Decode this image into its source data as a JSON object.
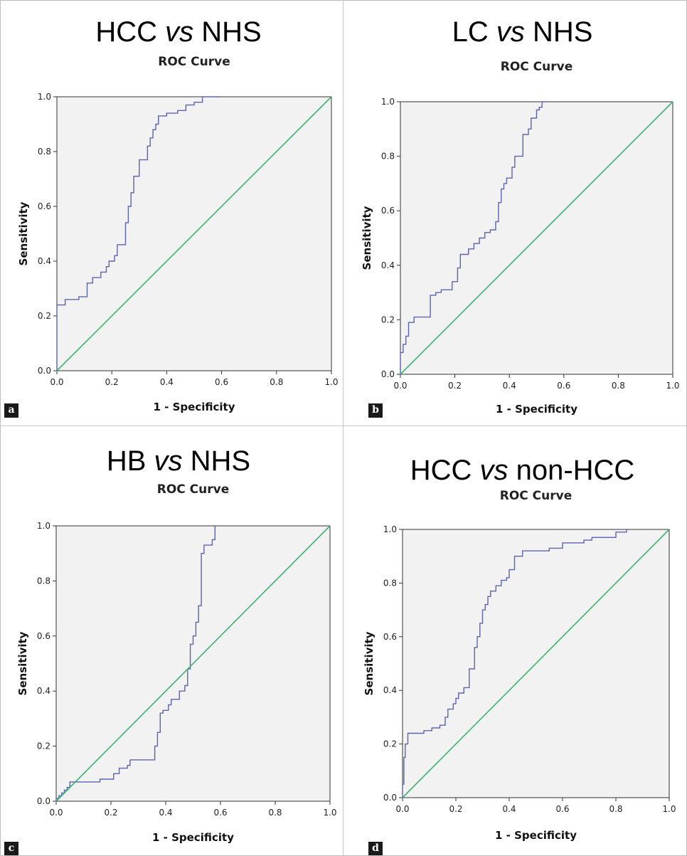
{
  "panels": [
    {
      "tag": "a"
    },
    {
      "tag": "b"
    },
    {
      "tag": "c"
    },
    {
      "tag": "d"
    }
  ],
  "colors": {
    "roc_curve": "#5b64ad",
    "reference_line": "#3cb371",
    "plot_background": "#f2f2f2",
    "axis": "#333333"
  },
  "chart_data": [
    {
      "type": "line",
      "title": "HCC vs NHS",
      "title_parts": [
        "HCC ",
        "vs",
        " NHS"
      ],
      "subtitle": "ROC Curve",
      "xlabel": "1 - Specificity",
      "ylabel": "Sensitivity",
      "xlim": [
        0,
        1
      ],
      "ylim": [
        0,
        1
      ],
      "xticks": [
        "0.0",
        "0.2",
        "0.4",
        "0.6",
        "0.8",
        "1.0"
      ],
      "yticks": [
        "0.0",
        "0.2",
        "0.4",
        "0.6",
        "0.8",
        "1.0"
      ],
      "grid": false,
      "series": [
        {
          "role": "roc",
          "x": [
            0,
            0,
            0.03,
            0.03,
            0.08,
            0.08,
            0.11,
            0.11,
            0.13,
            0.13,
            0.16,
            0.16,
            0.18,
            0.18,
            0.19,
            0.19,
            0.21,
            0.21,
            0.22,
            0.22,
            0.25,
            0.25,
            0.26,
            0.26,
            0.27,
            0.27,
            0.28,
            0.28,
            0.3,
            0.3,
            0.33,
            0.33,
            0.34,
            0.34,
            0.35,
            0.35,
            0.36,
            0.36,
            0.37,
            0.37,
            0.4,
            0.4,
            0.44,
            0.44,
            0.47,
            0.47,
            0.5,
            0.5,
            0.53,
            0.53,
            0.59
          ],
          "y": [
            0,
            0.24,
            0.24,
            0.26,
            0.26,
            0.27,
            0.27,
            0.32,
            0.32,
            0.34,
            0.34,
            0.36,
            0.36,
            0.38,
            0.38,
            0.4,
            0.4,
            0.42,
            0.42,
            0.46,
            0.46,
            0.54,
            0.54,
            0.6,
            0.6,
            0.65,
            0.65,
            0.71,
            0.71,
            0.77,
            0.77,
            0.82,
            0.82,
            0.85,
            0.85,
            0.88,
            0.88,
            0.9,
            0.9,
            0.93,
            0.93,
            0.94,
            0.94,
            0.95,
            0.95,
            0.97,
            0.97,
            0.98,
            0.98,
            1.0,
            1.0
          ]
        },
        {
          "role": "reference",
          "x": [
            0,
            1
          ],
          "y": [
            0,
            1
          ]
        }
      ]
    },
    {
      "type": "line",
      "title": "LC vs NHS",
      "title_parts": [
        "LC ",
        "vs",
        " NHS"
      ],
      "subtitle": "ROC Curve",
      "xlabel": "1 - Specificity",
      "ylabel": "Sensitivity",
      "xlim": [
        0,
        1
      ],
      "ylim": [
        0,
        1
      ],
      "xticks": [
        "0.0",
        "0.2",
        "0.4",
        "0.6",
        "0.8",
        "1.0"
      ],
      "yticks": [
        "0.0",
        "0.2",
        "0.4",
        "0.6",
        "0.8",
        "1.0"
      ],
      "grid": false,
      "series": [
        {
          "role": "roc",
          "x": [
            0,
            0,
            0.01,
            0.01,
            0.02,
            0.02,
            0.03,
            0.03,
            0.05,
            0.05,
            0.11,
            0.11,
            0.13,
            0.13,
            0.15,
            0.15,
            0.19,
            0.19,
            0.21,
            0.21,
            0.22,
            0.22,
            0.25,
            0.25,
            0.27,
            0.27,
            0.29,
            0.29,
            0.31,
            0.31,
            0.33,
            0.33,
            0.35,
            0.35,
            0.36,
            0.36,
            0.37,
            0.37,
            0.38,
            0.38,
            0.39,
            0.39,
            0.41,
            0.41,
            0.42,
            0.42,
            0.45,
            0.45,
            0.47,
            0.47,
            0.48,
            0.48,
            0.5,
            0.5,
            0.51,
            0.51,
            0.52,
            0.52,
            0.54
          ],
          "y": [
            0,
            0.08,
            0.08,
            0.11,
            0.11,
            0.14,
            0.14,
            0.19,
            0.19,
            0.21,
            0.21,
            0.29,
            0.29,
            0.3,
            0.3,
            0.31,
            0.31,
            0.34,
            0.34,
            0.39,
            0.39,
            0.44,
            0.44,
            0.46,
            0.46,
            0.48,
            0.48,
            0.5,
            0.5,
            0.52,
            0.52,
            0.53,
            0.53,
            0.56,
            0.56,
            0.63,
            0.63,
            0.68,
            0.68,
            0.7,
            0.7,
            0.72,
            0.72,
            0.76,
            0.76,
            0.8,
            0.8,
            0.88,
            0.88,
            0.9,
            0.9,
            0.94,
            0.94,
            0.97,
            0.97,
            0.98,
            0.98,
            1.0,
            1.0
          ]
        },
        {
          "role": "reference",
          "x": [
            0,
            1
          ],
          "y": [
            0,
            1
          ]
        }
      ]
    },
    {
      "type": "line",
      "title": "HB vs NHS",
      "title_parts": [
        "HB ",
        "vs",
        " NHS"
      ],
      "subtitle": "ROC Curve",
      "xlabel": "1 - Specificity",
      "ylabel": "Sensitivity",
      "xlim": [
        0,
        1
      ],
      "ylim": [
        0,
        1
      ],
      "xticks": [
        "0.0",
        "0.2",
        "0.4",
        "0.6",
        "0.8",
        "1.0"
      ],
      "yticks": [
        "0.0",
        "0.2",
        "0.4",
        "0.6",
        "0.8",
        "1.0"
      ],
      "grid": false,
      "series": [
        {
          "role": "roc",
          "x": [
            0,
            0,
            0.01,
            0.01,
            0.02,
            0.02,
            0.03,
            0.03,
            0.04,
            0.04,
            0.05,
            0.05,
            0.16,
            0.16,
            0.21,
            0.21,
            0.23,
            0.23,
            0.26,
            0.26,
            0.27,
            0.27,
            0.36,
            0.36,
            0.37,
            0.37,
            0.38,
            0.38,
            0.39,
            0.39,
            0.41,
            0.41,
            0.42,
            0.42,
            0.45,
            0.45,
            0.47,
            0.47,
            0.48,
            0.48,
            0.49,
            0.49,
            0.5,
            0.5,
            0.51,
            0.51,
            0.52,
            0.52,
            0.53,
            0.53,
            0.54,
            0.54,
            0.57,
            0.57,
            0.58,
            0.58
          ],
          "y": [
            0,
            0.01,
            0.01,
            0.02,
            0.02,
            0.03,
            0.03,
            0.04,
            0.04,
            0.05,
            0.05,
            0.07,
            0.07,
            0.08,
            0.08,
            0.1,
            0.1,
            0.12,
            0.12,
            0.13,
            0.13,
            0.15,
            0.15,
            0.2,
            0.2,
            0.25,
            0.25,
            0.32,
            0.32,
            0.33,
            0.33,
            0.35,
            0.35,
            0.37,
            0.37,
            0.4,
            0.4,
            0.42,
            0.42,
            0.48,
            0.48,
            0.57,
            0.57,
            0.6,
            0.6,
            0.65,
            0.65,
            0.71,
            0.71,
            0.9,
            0.9,
            0.93,
            0.93,
            0.95,
            0.95,
            1.0
          ]
        },
        {
          "role": "reference",
          "x": [
            0,
            1
          ],
          "y": [
            0,
            1
          ]
        }
      ]
    },
    {
      "type": "line",
      "title": "HCC vs non-HCC",
      "title_parts": [
        "HCC ",
        "vs",
        "  non-HCC"
      ],
      "subtitle": "ROC Curve",
      "xlabel": "1 - Specificity",
      "ylabel": "Sensitivity",
      "xlim": [
        0,
        1
      ],
      "ylim": [
        0,
        1
      ],
      "xticks": [
        "0.0",
        "0.2",
        "0.4",
        "0.6",
        "0.8",
        "1.0"
      ],
      "yticks": [
        "0.0",
        "0.2",
        "0.4",
        "0.6",
        "0.8",
        "1.0"
      ],
      "grid": false,
      "series": [
        {
          "role": "roc",
          "x": [
            0,
            0,
            0.005,
            0.005,
            0.01,
            0.01,
            0.02,
            0.02,
            0.03,
            0.03,
            0.08,
            0.08,
            0.11,
            0.11,
            0.14,
            0.14,
            0.16,
            0.16,
            0.17,
            0.17,
            0.19,
            0.19,
            0.2,
            0.2,
            0.21,
            0.21,
            0.23,
            0.23,
            0.25,
            0.25,
            0.27,
            0.27,
            0.28,
            0.28,
            0.29,
            0.29,
            0.3,
            0.3,
            0.31,
            0.31,
            0.32,
            0.32,
            0.33,
            0.33,
            0.35,
            0.35,
            0.37,
            0.37,
            0.39,
            0.39,
            0.4,
            0.4,
            0.42,
            0.42,
            0.45,
            0.45,
            0.55,
            0.55,
            0.6,
            0.6,
            0.68,
            0.68,
            0.71,
            0.71,
            0.8,
            0.8,
            0.84,
            0.84
          ],
          "y": [
            0,
            0.05,
            0.05,
            0.15,
            0.15,
            0.2,
            0.2,
            0.24,
            0.24,
            0.24,
            0.24,
            0.25,
            0.25,
            0.26,
            0.26,
            0.27,
            0.27,
            0.3,
            0.3,
            0.33,
            0.33,
            0.35,
            0.35,
            0.37,
            0.37,
            0.39,
            0.39,
            0.41,
            0.41,
            0.48,
            0.48,
            0.56,
            0.56,
            0.6,
            0.6,
            0.65,
            0.65,
            0.7,
            0.7,
            0.72,
            0.72,
            0.75,
            0.75,
            0.77,
            0.77,
            0.79,
            0.79,
            0.81,
            0.81,
            0.82,
            0.82,
            0.85,
            0.85,
            0.9,
            0.9,
            0.92,
            0.92,
            0.93,
            0.93,
            0.95,
            0.95,
            0.96,
            0.96,
            0.97,
            0.97,
            0.99,
            0.99,
            1.0
          ]
        },
        {
          "role": "reference",
          "x": [
            0,
            1
          ],
          "y": [
            0,
            1
          ]
        }
      ]
    }
  ]
}
